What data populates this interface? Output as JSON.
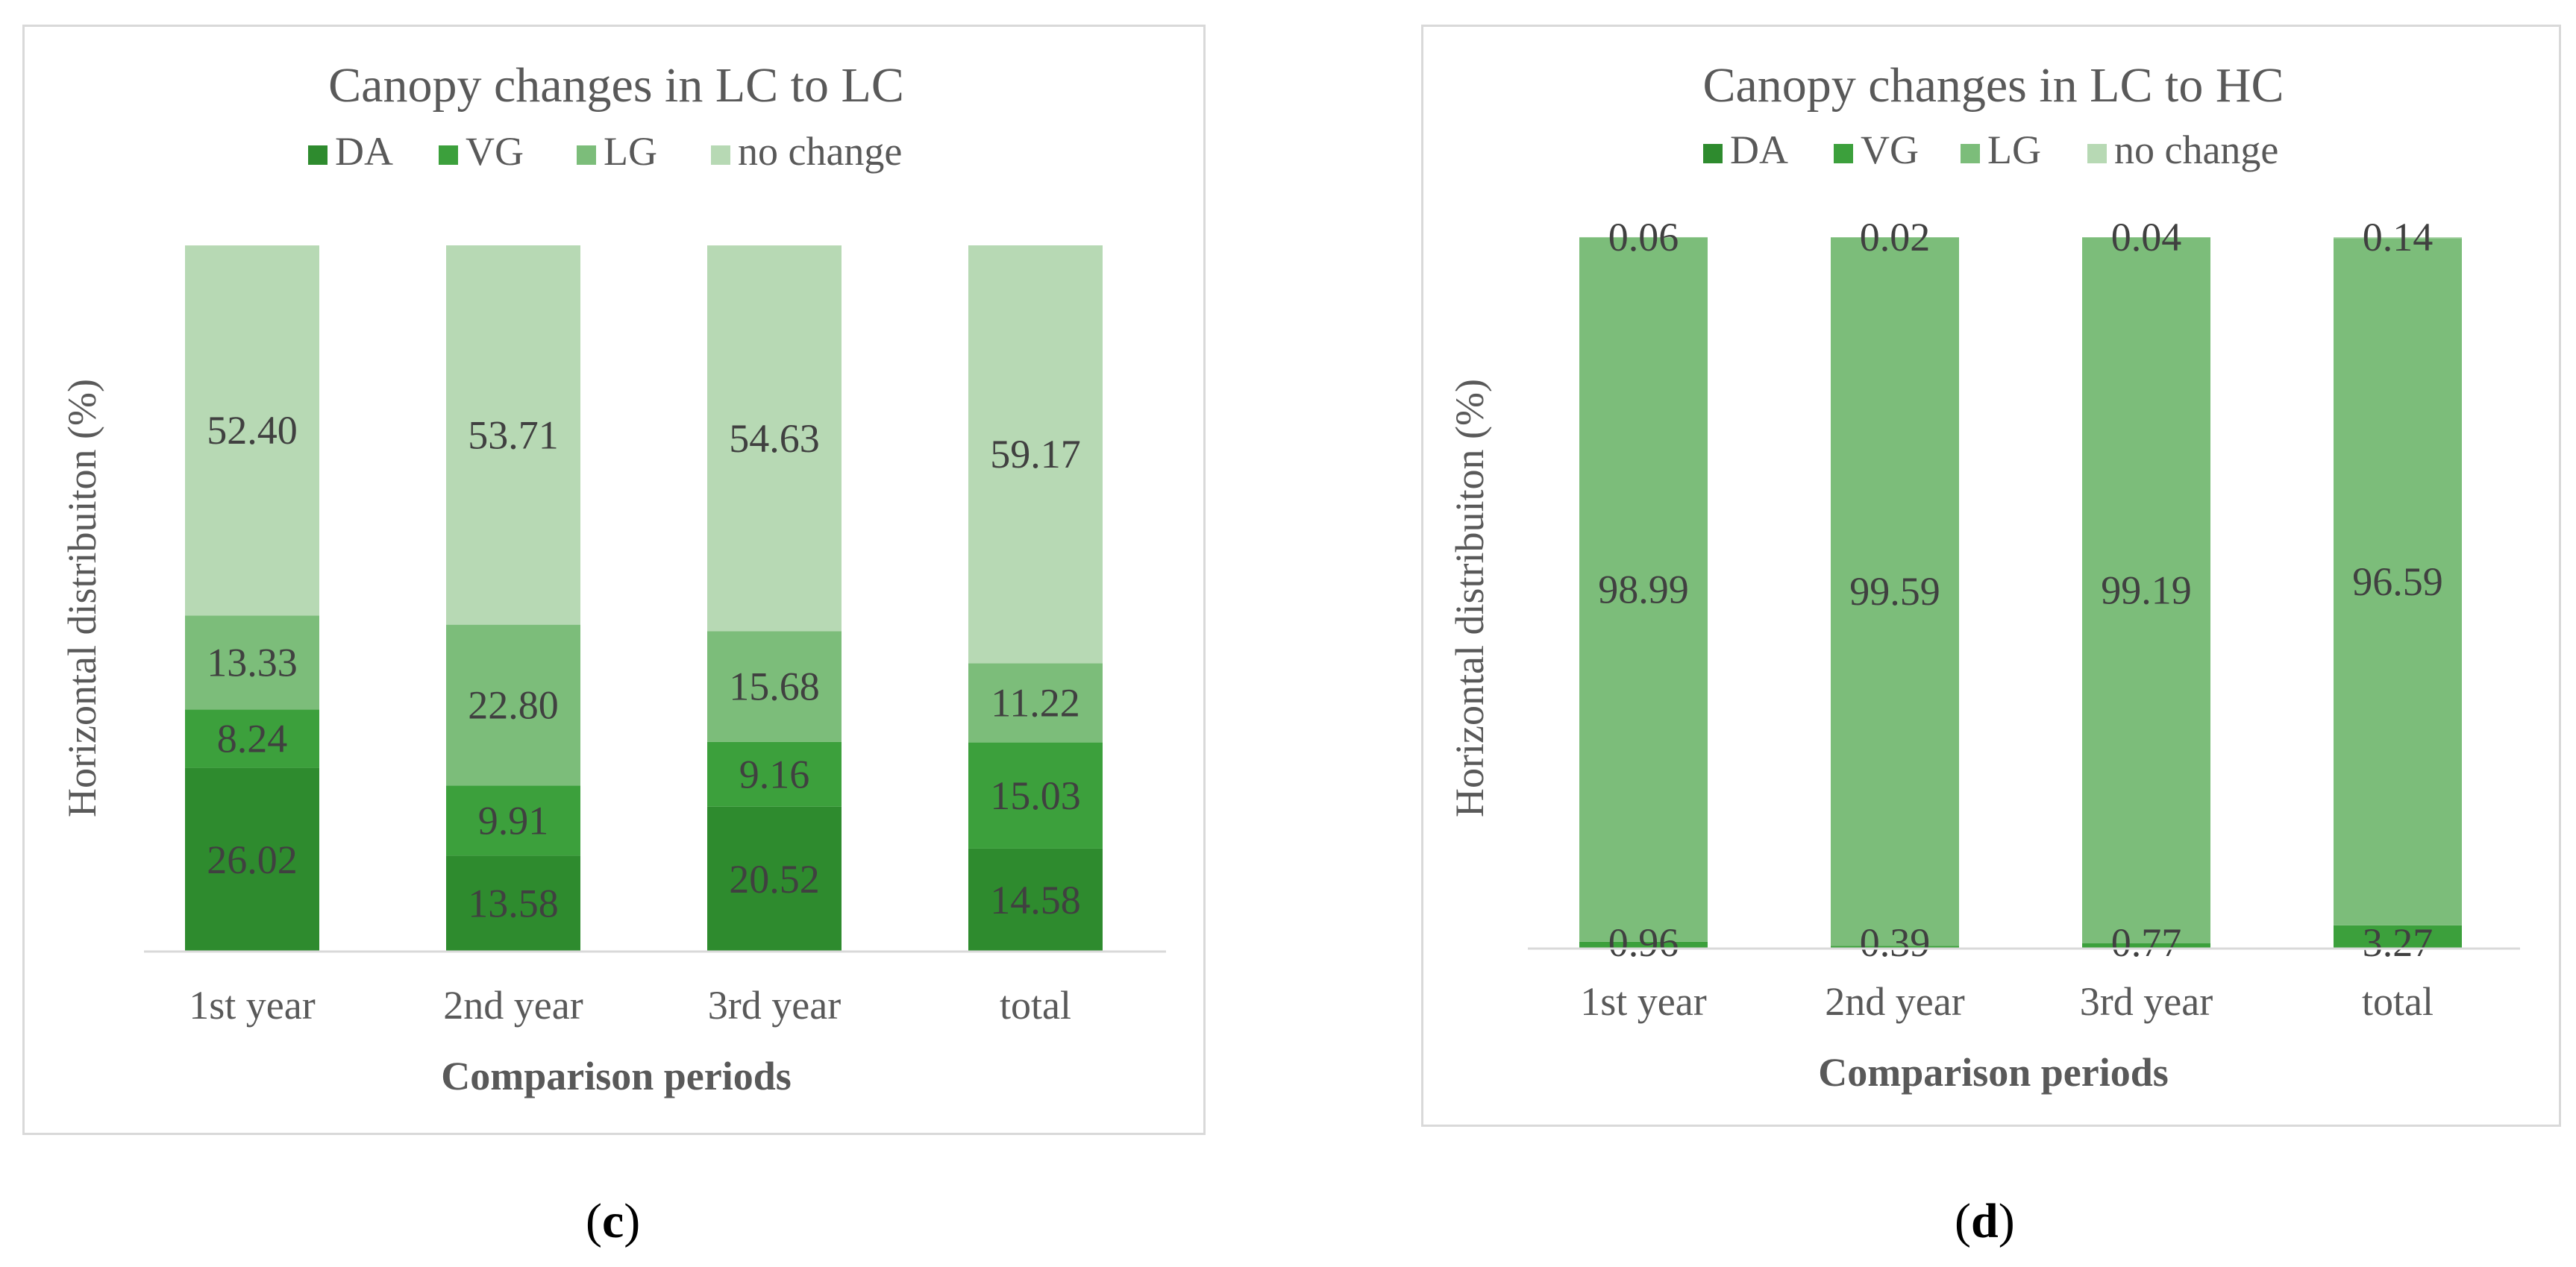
{
  "chart_data": [
    {
      "type": "bar",
      "stacked": true,
      "title": "Canopy changes in LC to LC",
      "xlabel": "Comparison periods",
      "ylabel": "Horizontal  distribuiton  (%)",
      "categories": [
        "1st year",
        "2nd year",
        "3rd year",
        "total"
      ],
      "series": [
        {
          "name": "DA",
          "color": "#2e8b2e",
          "values": [
            26.02,
            13.58,
            20.52,
            14.58
          ]
        },
        {
          "name": "VG",
          "color": "#3ca03c",
          "values": [
            8.24,
            9.91,
            9.16,
            15.03
          ]
        },
        {
          "name": "LG",
          "color": "#7cbd7a",
          "values": [
            13.33,
            22.8,
            15.68,
            11.22
          ]
        },
        {
          "name": "no change",
          "color": "#b7d9b4",
          "values": [
            52.4,
            53.71,
            54.63,
            59.17
          ]
        }
      ],
      "data_labels": [
        [
          "26.02",
          "13.58",
          "20.52",
          "14.58"
        ],
        [
          "8.24",
          "9.91",
          "9.16",
          "15.03"
        ],
        [
          "13.33",
          "22.80",
          "15.68",
          "11.22"
        ],
        [
          "52.40",
          "53.71",
          "54.63",
          "59.17"
        ]
      ],
      "legend_position": "top",
      "grid": false,
      "caption": "c"
    },
    {
      "type": "bar",
      "stacked": true,
      "title": "Canopy changes in LC to HC",
      "xlabel": "Comparison periods",
      "ylabel": "Horizontal  distribuiton  (%)",
      "categories": [
        "1st year",
        "2nd year",
        "3rd year",
        "total"
      ],
      "series": [
        {
          "name": "DA",
          "color": "#2e8b2e",
          "values": [
            0,
            0,
            0,
            0
          ]
        },
        {
          "name": "VG",
          "color": "#3ca03c",
          "values": [
            0.96,
            0.39,
            0.77,
            3.27
          ]
        },
        {
          "name": "LG",
          "color": "#7cbd7a",
          "values": [
            98.99,
            99.59,
            99.19,
            96.59
          ]
        },
        {
          "name": "no change",
          "color": "#b7d9b4",
          "values": [
            0.06,
            0.02,
            0.04,
            0.14
          ]
        }
      ],
      "data_labels": [
        [
          null,
          null,
          null,
          null
        ],
        [
          "0.96",
          "0.39",
          "0.77",
          "3.27"
        ],
        [
          "98.99",
          "99.59",
          "99.19",
          "96.59"
        ],
        [
          "0.06",
          "0.02",
          "0.04",
          "0.14"
        ]
      ],
      "legend_position": "top",
      "grid": false,
      "caption": "d"
    }
  ],
  "captions": {
    "c": "c",
    "d": "d"
  },
  "colors": {
    "axis": "#d9d9d9",
    "text": "#595959",
    "label": "#404040"
  }
}
